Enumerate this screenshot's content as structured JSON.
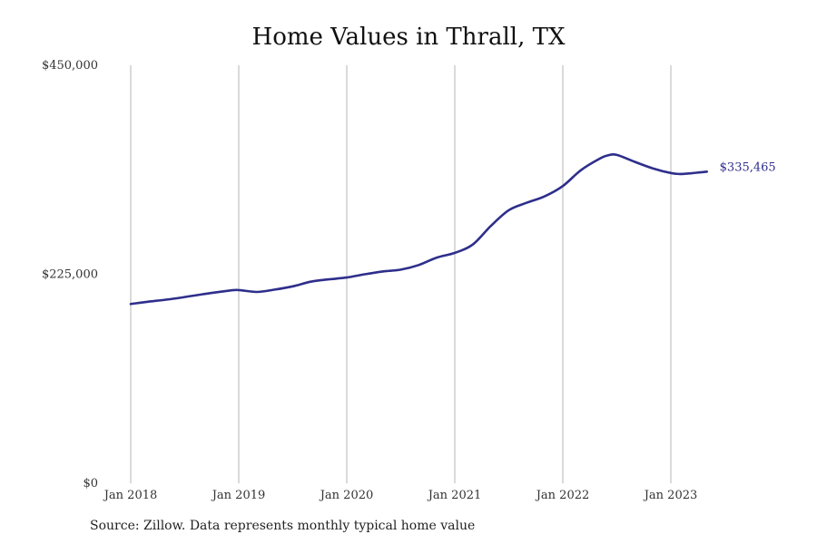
{
  "chart_data": {
    "type": "line",
    "title": "Home Values in Thrall, TX",
    "xlabel": "",
    "ylabel": "",
    "ylim": [
      0,
      450000
    ],
    "y_ticks": [
      {
        "value": 0,
        "label": "$0"
      },
      {
        "value": 225000,
        "label": "$225,000"
      },
      {
        "value": 450000,
        "label": "$450,000"
      }
    ],
    "x_ticks": [
      {
        "value": "2018-01",
        "label": "Jan 2018"
      },
      {
        "value": "2019-01",
        "label": "Jan 2019"
      },
      {
        "value": "2020-01",
        "label": "Jan 2020"
      },
      {
        "value": "2021-01",
        "label": "Jan 2021"
      },
      {
        "value": "2022-01",
        "label": "Jan 2022"
      },
      {
        "value": "2023-01",
        "label": "Jan 2023"
      }
    ],
    "xlim": [
      "2018-01",
      "2023-12"
    ],
    "vertical_grid": true,
    "horizontal_grid": false,
    "line_color": "#2e2e8c",
    "series": [
      {
        "x": [
          "2018-01",
          "2018-03",
          "2018-06",
          "2018-09",
          "2018-12",
          "2019-01",
          "2019-03",
          "2019-05",
          "2019-07",
          "2019-09",
          "2019-11",
          "2020-01",
          "2020-03",
          "2020-05",
          "2020-07",
          "2020-09",
          "2020-11",
          "2021-01",
          "2021-03",
          "2021-05",
          "2021-07",
          "2021-09",
          "2021-11",
          "2022-01",
          "2022-03",
          "2022-05",
          "2022-06",
          "2022-07",
          "2022-09",
          "2022-11",
          "2023-01",
          "2023-02",
          "2023-03",
          "2023-04",
          "2023-05"
        ],
        "values": [
          193000,
          195500,
          199000,
          203500,
          207500,
          208000,
          206000,
          208500,
          212000,
          217000,
          219500,
          221500,
          225000,
          228000,
          230000,
          235000,
          243000,
          248000,
          257000,
          277000,
          294000,
          302000,
          309000,
          320000,
          337000,
          349000,
          353000,
          353500,
          346000,
          339000,
          334000,
          333000,
          333500,
          334500,
          335465
        ]
      }
    ],
    "end_label": "$335,465",
    "source": "Source: Zillow. Data represents monthly typical home value"
  }
}
